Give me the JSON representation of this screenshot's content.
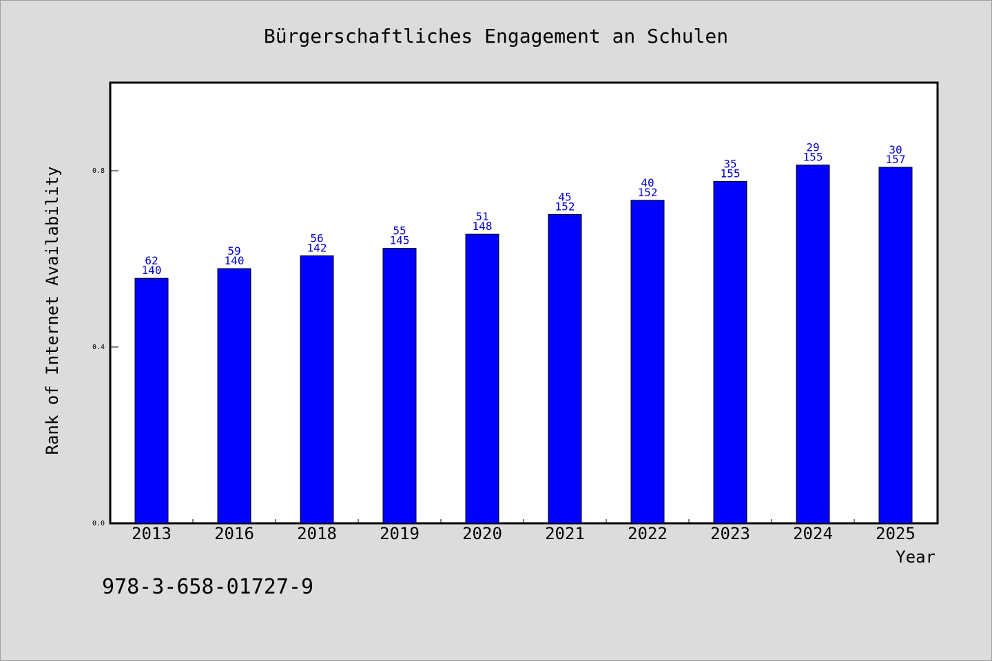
{
  "chart_data": {
    "type": "bar",
    "title": "Bürgerschaftliches Engagement an Schulen",
    "xlabel": "Year",
    "ylabel": "Rank of Internet Availability",
    "categories": [
      "2013",
      "2016",
      "2018",
      "2019",
      "2020",
      "2021",
      "2022",
      "2023",
      "2024",
      "2025"
    ],
    "series": [
      {
        "values": [
          0.556,
          0.578,
          0.607,
          0.624,
          0.656,
          0.701,
          0.733,
          0.776,
          0.813,
          0.808
        ],
        "label_top": [
          "62",
          "59",
          "56",
          "55",
          "51",
          "45",
          "40",
          "35",
          "29",
          "30"
        ],
        "label_bottom": [
          "140",
          "140",
          "142",
          "145",
          "148",
          "152",
          "152",
          "155",
          "155",
          "157"
        ]
      }
    ],
    "ylim": [
      0.0,
      1.0
    ],
    "yticks": [
      "0.0",
      "0.4",
      "0.8"
    ],
    "grid": false,
    "bar_color": "#0000ff",
    "label_color": "#0000cc"
  },
  "annotation": {
    "isbn": "978-3-658-01727-9"
  }
}
